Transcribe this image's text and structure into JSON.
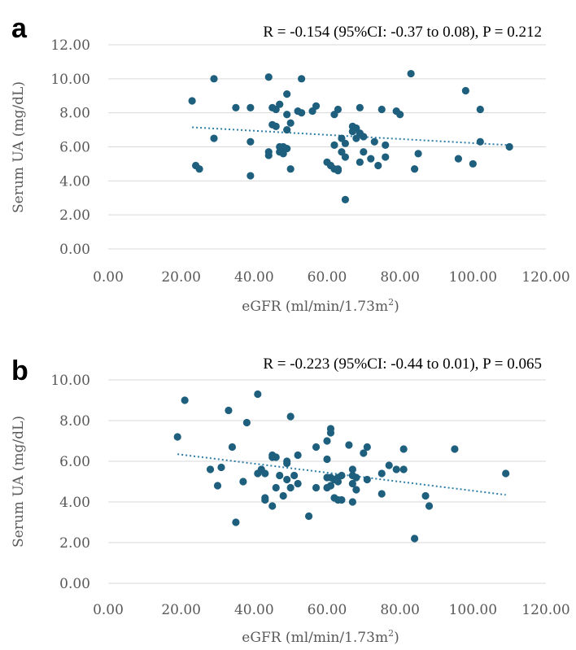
{
  "chart_data": [
    {
      "type": "scatter",
      "panel_label": "a",
      "annotation": "R = -0.154 (95%CI: -0.37 to 0.08), P = 0.212",
      "xlabel": "eGFR (ml/min/1.73m",
      "xlabel_sup": "2",
      "xlabel_end": ")",
      "ylabel": "Serum UA (mg/dL)",
      "xlim": [
        0,
        120
      ],
      "ylim": [
        0,
        12
      ],
      "x_ticks": [
        "0.00",
        "20.00",
        "40.00",
        "60.00",
        "80.00",
        "100.00",
        "120.00"
      ],
      "y_ticks": [
        "0.00",
        "2.00",
        "4.00",
        "6.00",
        "8.00",
        "10.00",
        "12.00"
      ],
      "grid": true,
      "trendline": {
        "style": "dotted",
        "x": [
          23,
          110
        ],
        "y": [
          7.15,
          6.1
        ]
      },
      "points": [
        [
          23,
          8.7
        ],
        [
          24,
          4.9
        ],
        [
          25,
          4.7
        ],
        [
          29,
          10.0
        ],
        [
          29,
          6.5
        ],
        [
          35,
          8.3
        ],
        [
          39,
          8.3
        ],
        [
          39,
          6.3
        ],
        [
          39,
          4.3
        ],
        [
          44,
          10.1
        ],
        [
          44,
          5.7
        ],
        [
          44,
          5.5
        ],
        [
          45,
          8.3
        ],
        [
          45,
          7.3
        ],
        [
          46,
          7.2
        ],
        [
          46,
          8.2
        ],
        [
          47,
          8.5
        ],
        [
          47,
          6.0
        ],
        [
          47,
          5.7
        ],
        [
          48,
          6.0
        ],
        [
          48,
          5.6
        ],
        [
          49,
          9.1
        ],
        [
          49,
          7.9
        ],
        [
          49,
          7.0
        ],
        [
          49,
          5.9
        ],
        [
          50,
          7.4
        ],
        [
          50,
          4.7
        ],
        [
          52,
          8.1
        ],
        [
          53,
          10.0
        ],
        [
          53,
          8.0
        ],
        [
          56,
          8.1
        ],
        [
          57,
          8.4
        ],
        [
          60,
          5.1
        ],
        [
          61,
          4.9
        ],
        [
          62,
          4.7
        ],
        [
          62,
          6.1
        ],
        [
          62,
          7.9
        ],
        [
          63,
          8.2
        ],
        [
          63,
          4.6
        ],
        [
          63,
          4.7
        ],
        [
          64,
          6.5
        ],
        [
          64,
          5.7
        ],
        [
          65,
          6.2
        ],
        [
          65,
          5.4
        ],
        [
          65,
          2.9
        ],
        [
          67,
          7.2
        ],
        [
          67,
          6.9
        ],
        [
          68,
          7.1
        ],
        [
          68,
          6.5
        ],
        [
          69,
          8.3
        ],
        [
          69,
          6.8
        ],
        [
          69,
          5.1
        ],
        [
          70,
          6.6
        ],
        [
          70,
          5.7
        ],
        [
          72,
          5.3
        ],
        [
          73,
          6.3
        ],
        [
          74,
          4.9
        ],
        [
          75,
          8.2
        ],
        [
          76,
          6.1
        ],
        [
          76,
          5.4
        ],
        [
          79,
          8.1
        ],
        [
          80,
          7.9
        ],
        [
          83,
          10.3
        ],
        [
          84,
          4.7
        ],
        [
          85,
          5.6
        ],
        [
          96,
          5.3
        ],
        [
          98,
          9.3
        ],
        [
          100,
          5.0
        ],
        [
          102,
          8.2
        ],
        [
          102,
          6.3
        ],
        [
          110,
          6.0
        ]
      ]
    },
    {
      "type": "scatter",
      "panel_label": "b",
      "annotation": "R = -0.223 (95%CI: -0.44 to 0.01), P = 0.065",
      "xlabel": "eGFR (ml/min/1.73m",
      "xlabel_sup": "2",
      "xlabel_end": ")",
      "ylabel": "Serum UA (mg/dL)",
      "xlim": [
        0,
        120
      ],
      "ylim": [
        0,
        10
      ],
      "x_ticks": [
        "0.00",
        "20.00",
        "40.00",
        "60.00",
        "80.00",
        "100.00",
        "120.00"
      ],
      "y_ticks": [
        "0.00",
        "2.00",
        "4.00",
        "6.00",
        "8.00",
        "10.00"
      ],
      "grid": true,
      "trendline": {
        "style": "dotted",
        "x": [
          19,
          109
        ],
        "y": [
          6.35,
          4.35
        ]
      },
      "points": [
        [
          19,
          7.2
        ],
        [
          21,
          9.0
        ],
        [
          28,
          5.6
        ],
        [
          30,
          4.8
        ],
        [
          31,
          5.7
        ],
        [
          33,
          8.5
        ],
        [
          34,
          6.7
        ],
        [
          35,
          3.0
        ],
        [
          37,
          5.0
        ],
        [
          38,
          7.9
        ],
        [
          41,
          9.3
        ],
        [
          41,
          5.4
        ],
        [
          42,
          5.6
        ],
        [
          43,
          5.4
        ],
        [
          43,
          4.2
        ],
        [
          43,
          4.1
        ],
        [
          45,
          6.3
        ],
        [
          45,
          6.2
        ],
        [
          45,
          3.8
        ],
        [
          46,
          6.2
        ],
        [
          46,
          4.7
        ],
        [
          47,
          5.3
        ],
        [
          48,
          4.3
        ],
        [
          49,
          6.0
        ],
        [
          49,
          5.9
        ],
        [
          49,
          5.1
        ],
        [
          50,
          8.2
        ],
        [
          50,
          4.7
        ],
        [
          51,
          5.3
        ],
        [
          52,
          6.3
        ],
        [
          52,
          4.9
        ],
        [
          55,
          3.3
        ],
        [
          57,
          6.7
        ],
        [
          57,
          4.7
        ],
        [
          60,
          7.0
        ],
        [
          60,
          6.1
        ],
        [
          60,
          5.2
        ],
        [
          60,
          4.7
        ],
        [
          61,
          7.6
        ],
        [
          61,
          7.4
        ],
        [
          61,
          5.2
        ],
        [
          61,
          4.8
        ],
        [
          62,
          5.1
        ],
        [
          62,
          4.2
        ],
        [
          63,
          5.2
        ],
        [
          63,
          5.0
        ],
        [
          63,
          4.1
        ],
        [
          64,
          5.3
        ],
        [
          64,
          4.1
        ],
        [
          66,
          6.8
        ],
        [
          67,
          5.6
        ],
        [
          67,
          5.3
        ],
        [
          67,
          4.9
        ],
        [
          67,
          4.0
        ],
        [
          68,
          4.6
        ],
        [
          68,
          5.2
        ],
        [
          70,
          6.4
        ],
        [
          71,
          6.7
        ],
        [
          71,
          5.1
        ],
        [
          75,
          4.4
        ],
        [
          75,
          5.4
        ],
        [
          77,
          5.8
        ],
        [
          79,
          5.6
        ],
        [
          81,
          6.6
        ],
        [
          81,
          5.6
        ],
        [
          84,
          2.2
        ],
        [
          87,
          4.3
        ],
        [
          88,
          3.8
        ],
        [
          95,
          6.6
        ],
        [
          109,
          5.4
        ]
      ]
    }
  ]
}
